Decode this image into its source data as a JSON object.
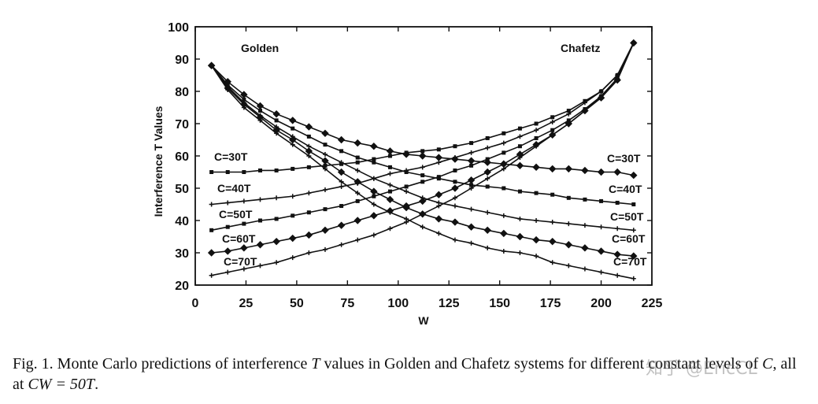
{
  "chart_data": {
    "type": "line",
    "title": "",
    "xlabel": "W",
    "ylabel": "Interference T Values",
    "xlim": [
      0,
      225
    ],
    "ylim": [
      20,
      100
    ],
    "xticks": [
      0,
      25,
      50,
      75,
      100,
      125,
      150,
      175,
      200,
      225
    ],
    "yticks": [
      20,
      30,
      40,
      50,
      60,
      70,
      80,
      90,
      100
    ],
    "corner_labels": {
      "left": "Golden",
      "right": "Chafetz"
    },
    "x": [
      8,
      16,
      24,
      32,
      40,
      48,
      56,
      64,
      72,
      80,
      88,
      96,
      104,
      112,
      120,
      128,
      136,
      144,
      152,
      160,
      168,
      176,
      184,
      192,
      200,
      208,
      216
    ],
    "series": [
      {
        "name": "Golden C=30T",
        "system": "Golden",
        "marker": "diamond",
        "values": [
          88,
          83,
          79,
          75.5,
          73,
          71,
          69,
          67,
          65,
          64,
          63,
          61.5,
          60.5,
          60,
          59.5,
          59,
          58.5,
          58,
          57.5,
          57,
          56.5,
          56,
          56,
          55.5,
          55,
          55,
          54
        ]
      },
      {
        "name": "Golden C=40T",
        "system": "Golden",
        "marker": "square",
        "values": [
          88,
          82,
          77.5,
          74,
          71,
          68.5,
          66,
          63.5,
          61.5,
          59.5,
          58,
          56.5,
          55,
          54,
          53,
          52,
          51,
          50.5,
          50,
          49,
          48.5,
          48,
          47,
          46.5,
          46,
          45.5,
          45
        ]
      },
      {
        "name": "Golden C=50T",
        "system": "Golden",
        "marker": "plus",
        "values": [
          88,
          81.5,
          76.5,
          72.5,
          69,
          66,
          63,
          60.5,
          58,
          55.5,
          53,
          51,
          49,
          47,
          45.5,
          44.5,
          43.5,
          42.5,
          41.5,
          40.5,
          40,
          39.5,
          39,
          38.5,
          38,
          37.5,
          37
        ]
      },
      {
        "name": "Golden C=60T",
        "system": "Golden",
        "marker": "diamond",
        "values": [
          88,
          81,
          76,
          72,
          68,
          65,
          61.5,
          58.5,
          55,
          52,
          49,
          46.5,
          44,
          42,
          40.5,
          39.5,
          38,
          37,
          36,
          35,
          34,
          33.5,
          32.5,
          31.5,
          30.5,
          29.5,
          29
        ]
      },
      {
        "name": "Golden C=70T",
        "system": "Golden",
        "marker": "plus",
        "values": [
          88,
          80.5,
          75,
          71,
          67,
          63.5,
          60,
          56,
          52,
          48.5,
          45,
          42.5,
          40.5,
          38,
          36,
          34,
          33,
          31.5,
          30.5,
          30,
          29,
          27,
          26,
          25,
          24,
          23,
          22
        ]
      },
      {
        "name": "Chafetz C=30T",
        "system": "Chafetz",
        "marker": "square",
        "values": [
          55,
          55,
          55,
          55.5,
          55.5,
          56,
          56.5,
          57,
          57.5,
          58,
          59,
          60,
          61,
          61.5,
          62,
          63,
          64,
          65.5,
          67,
          68.5,
          70,
          72,
          74,
          77,
          80,
          85,
          95
        ]
      },
      {
        "name": "Chafetz C=40T",
        "system": "Chafetz",
        "marker": "plus",
        "values": [
          45,
          45.5,
          46,
          46.5,
          47,
          47.5,
          48.5,
          49.5,
          50.5,
          51.5,
          53,
          54.5,
          55.5,
          56.5,
          58,
          59.5,
          61,
          62.5,
          64,
          66,
          68,
          70.5,
          73,
          76.5,
          80,
          85,
          95
        ]
      },
      {
        "name": "Chafetz C=50T",
        "system": "Chafetz",
        "marker": "square",
        "values": [
          37,
          38,
          39,
          40,
          40.5,
          41.5,
          42.5,
          43.5,
          44.5,
          46,
          47.5,
          49,
          50.5,
          52,
          53.5,
          55.5,
          57,
          59,
          61,
          63,
          65.5,
          68,
          71,
          74.5,
          78.5,
          84,
          95
        ]
      },
      {
        "name": "Chafetz C=60T",
        "system": "Chafetz",
        "marker": "diamond",
        "values": [
          30,
          30.5,
          31.5,
          32.5,
          33.5,
          34.5,
          35.5,
          37,
          38.5,
          40,
          41.5,
          43,
          44.5,
          46,
          48,
          50,
          52.5,
          55,
          57.5,
          60.5,
          63.5,
          66.5,
          70,
          74,
          78,
          83.5,
          95
        ]
      },
      {
        "name": "Chafetz C=70T",
        "system": "Chafetz",
        "marker": "plus",
        "values": [
          23,
          24,
          25,
          26,
          27,
          28.5,
          30,
          31,
          32.5,
          34,
          35.5,
          37.5,
          39.5,
          42,
          44.5,
          47,
          50,
          53,
          56,
          59.5,
          63,
          66.5,
          70,
          74,
          78.5,
          84,
          95
        ]
      }
    ],
    "series_labels_left": [
      "C=30T",
      "C=40T",
      "C=50T",
      "C=60T",
      "C=70T"
    ],
    "series_labels_right": [
      "C=30T",
      "C=40T",
      "C=50T",
      "C=60T",
      "C=70T"
    ]
  },
  "caption": {
    "prefix": "Fig. 1. Monte Carlo predictions of interference ",
    "var_T": "T",
    "middle": " values in Golden and Chafetz systems for different constant levels of ",
    "var_C": "C",
    "suffix_pre": ", all at ",
    "equation": "CW = 50T",
    "suffix": "."
  },
  "watermark": "知乎 @EricCL"
}
